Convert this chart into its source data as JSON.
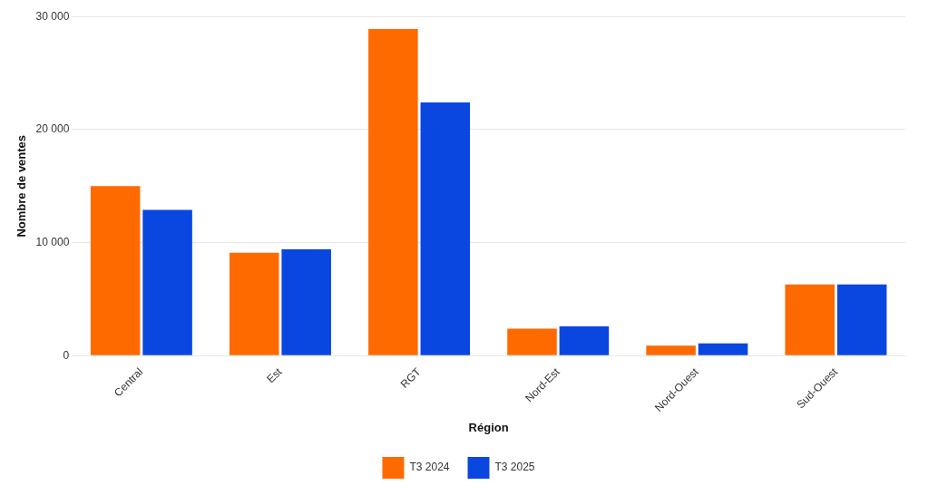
{
  "chart_data": {
    "type": "bar",
    "xlabel": "Région",
    "ylabel": "Nombre de ventes",
    "categories": [
      "Central",
      "Est",
      "RGT",
      "Nord-Est",
      "Nord-Ouest",
      "Sud-Ouest"
    ],
    "series": [
      {
        "name": "T3 2024",
        "color": "#ff6a00",
        "values": [
          15000,
          9100,
          28900,
          2400,
          900,
          6300
        ]
      },
      {
        "name": "T3 2025",
        "color": "#0a47e0",
        "values": [
          12900,
          9400,
          22400,
          2600,
          1100,
          6300
        ]
      }
    ],
    "ylim": [
      0,
      30000
    ],
    "yticks": [
      0,
      {
        "value": 10000,
        "label": "10 000"
      },
      {
        "value": 20000,
        "label": "20 000"
      },
      {
        "value": 30000,
        "label": "30 000"
      }
    ],
    "grid": "y",
    "legend": "bottom"
  }
}
